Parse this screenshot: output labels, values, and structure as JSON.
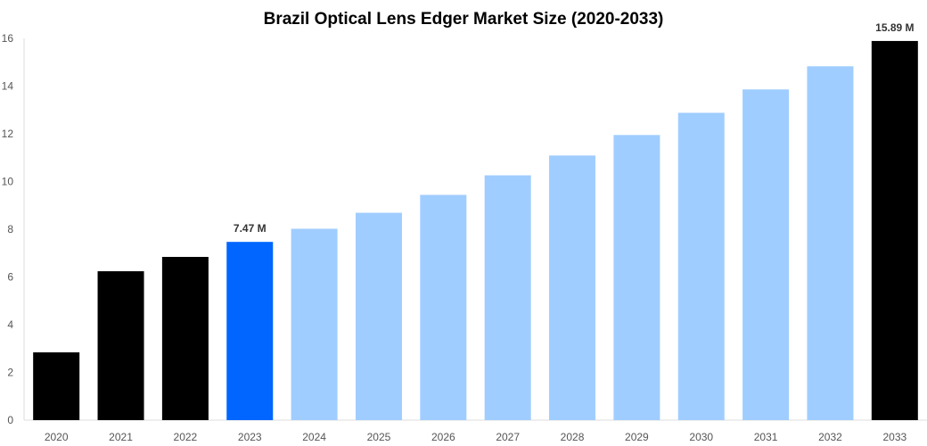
{
  "chart_data": {
    "type": "bar",
    "title": "Brazil Optical Lens Edger Market Size (2020-2033)",
    "xlabel": "",
    "ylabel": "",
    "ylim": [
      0,
      16
    ],
    "yticks": [
      0,
      2,
      4,
      6,
      8,
      10,
      12,
      14,
      16
    ],
    "grid": false,
    "categories": [
      "2020",
      "2021",
      "2022",
      "2023",
      "2024",
      "2025",
      "2026",
      "2027",
      "2028",
      "2029",
      "2030",
      "2031",
      "2032",
      "2033"
    ],
    "values": [
      2.84,
      6.24,
      6.84,
      7.47,
      8.02,
      8.69,
      9.44,
      10.26,
      11.09,
      11.95,
      12.88,
      13.86,
      14.83,
      15.89
    ],
    "bar_colors": [
      "#000000",
      "#000000",
      "#000000",
      "#0066ff",
      "#a0cdff",
      "#a0cdff",
      "#a0cdff",
      "#a0cdff",
      "#a0cdff",
      "#a0cdff",
      "#a0cdff",
      "#a0cdff",
      "#a0cdff",
      "#000000"
    ],
    "data_labels": {
      "2023": "7.47 M",
      "2033": "15.89 M"
    }
  }
}
